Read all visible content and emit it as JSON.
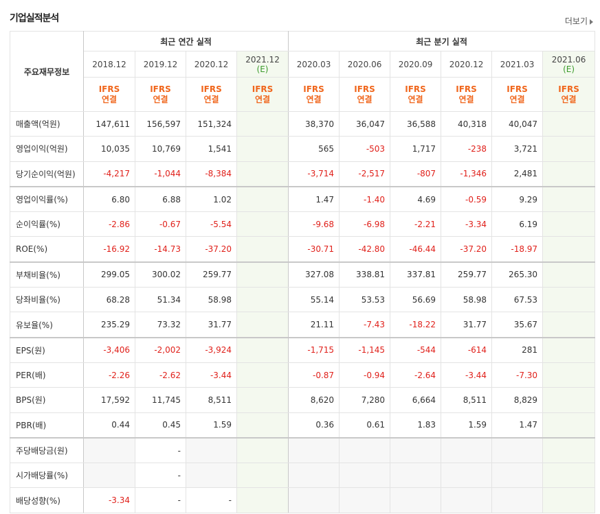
{
  "header": {
    "title": "기업실적분석",
    "more": "더보기"
  },
  "table": {
    "corner": "주요재무정보",
    "groups": [
      {
        "label": "최근 연간 실적",
        "span": 4
      },
      {
        "label": "최근 분기 실적",
        "span": 6
      }
    ],
    "columns": [
      {
        "date": "2018.12",
        "accounting": "IFRS",
        "consolidation": "연결"
      },
      {
        "date": "2019.12",
        "accounting": "IFRS",
        "consolidation": "연결"
      },
      {
        "date": "2020.12",
        "accounting": "IFRS",
        "consolidation": "연결"
      },
      {
        "date": "2021.12",
        "estimate": "(E)",
        "accounting": "IFRS",
        "consolidation": "연결"
      },
      {
        "date": "2020.03",
        "accounting": "IFRS",
        "consolidation": "연결"
      },
      {
        "date": "2020.06",
        "accounting": "IFRS",
        "consolidation": "연결"
      },
      {
        "date": "2020.09",
        "accounting": "IFRS",
        "consolidation": "연결"
      },
      {
        "date": "2020.12",
        "accounting": "IFRS",
        "consolidation": "연결"
      },
      {
        "date": "2021.03",
        "accounting": "IFRS",
        "consolidation": "연결"
      },
      {
        "date": "2021.06",
        "estimate": "(E)",
        "accounting": "IFRS",
        "consolidation": "연결"
      }
    ],
    "rows": [
      {
        "label": "매출액(억원)",
        "cells": [
          "147,611",
          "156,597",
          "151,324",
          null,
          "38,370",
          "36,047",
          "36,588",
          "40,318",
          "40,047",
          null
        ]
      },
      {
        "label": "영업이익(억원)",
        "cells": [
          "10,035",
          "10,769",
          "1,541",
          null,
          "565",
          "-503",
          "1,717",
          "-238",
          "3,721",
          null
        ]
      },
      {
        "label": "당기순이익(억원)",
        "cells": [
          "-4,217",
          "-1,044",
          "-8,384",
          null,
          "-3,714",
          "-2,517",
          "-807",
          "-1,346",
          "2,481",
          null
        ]
      },
      {
        "label": "영업이익률(%)",
        "cells": [
          "6.80",
          "6.88",
          "1.02",
          null,
          "1.47",
          "-1.40",
          "4.69",
          "-0.59",
          "9.29",
          null
        ]
      },
      {
        "label": "순이익률(%)",
        "cells": [
          "-2.86",
          "-0.67",
          "-5.54",
          null,
          "-9.68",
          "-6.98",
          "-2.21",
          "-3.34",
          "6.19",
          null
        ]
      },
      {
        "label": "ROE(%)",
        "cells": [
          "-16.92",
          "-14.73",
          "-37.20",
          null,
          "-30.71",
          "-42.80",
          "-46.44",
          "-37.20",
          "-18.97",
          null
        ]
      },
      {
        "label": "부채비율(%)",
        "cells": [
          "299.05",
          "300.02",
          "259.77",
          null,
          "327.08",
          "338.81",
          "337.81",
          "259.77",
          "265.30",
          null
        ]
      },
      {
        "label": "당좌비율(%)",
        "cells": [
          "68.28",
          "51.34",
          "58.98",
          null,
          "55.14",
          "53.53",
          "56.69",
          "58.98",
          "67.53",
          null
        ]
      },
      {
        "label": "유보율(%)",
        "cells": [
          "235.29",
          "73.32",
          "31.77",
          null,
          "21.11",
          "-7.43",
          "-18.22",
          "31.77",
          "35.67",
          null
        ]
      },
      {
        "label": "EPS(원)",
        "cells": [
          "-3,406",
          "-2,002",
          "-3,924",
          null,
          "-1,715",
          "-1,145",
          "-544",
          "-614",
          "281",
          null
        ]
      },
      {
        "label": "PER(배)",
        "cells": [
          "-2.26",
          "-2.62",
          "-3.44",
          null,
          "-0.87",
          "-0.94",
          "-2.64",
          "-3.44",
          "-7.30",
          null
        ]
      },
      {
        "label": "BPS(원)",
        "cells": [
          "17,592",
          "11,745",
          "8,511",
          null,
          "8,620",
          "7,280",
          "6,664",
          "8,511",
          "8,829",
          null
        ]
      },
      {
        "label": "PBR(배)",
        "cells": [
          "0.44",
          "0.45",
          "1.59",
          null,
          "0.36",
          "0.61",
          "1.83",
          "1.59",
          "1.47",
          null
        ]
      },
      {
        "label": "주당배당금(원)",
        "cells": [
          null,
          "-",
          null,
          null,
          null,
          null,
          null,
          null,
          null,
          null
        ]
      },
      {
        "label": "시가배당률(%)",
        "cells": [
          null,
          "-",
          null,
          null,
          null,
          null,
          null,
          null,
          null,
          null
        ]
      },
      {
        "label": "배당성향(%)",
        "cells": [
          "-3.34",
          "-",
          "-",
          null,
          null,
          null,
          null,
          null,
          null,
          null
        ]
      }
    ],
    "group_breaks": [
      2,
      5,
      8,
      12
    ]
  }
}
